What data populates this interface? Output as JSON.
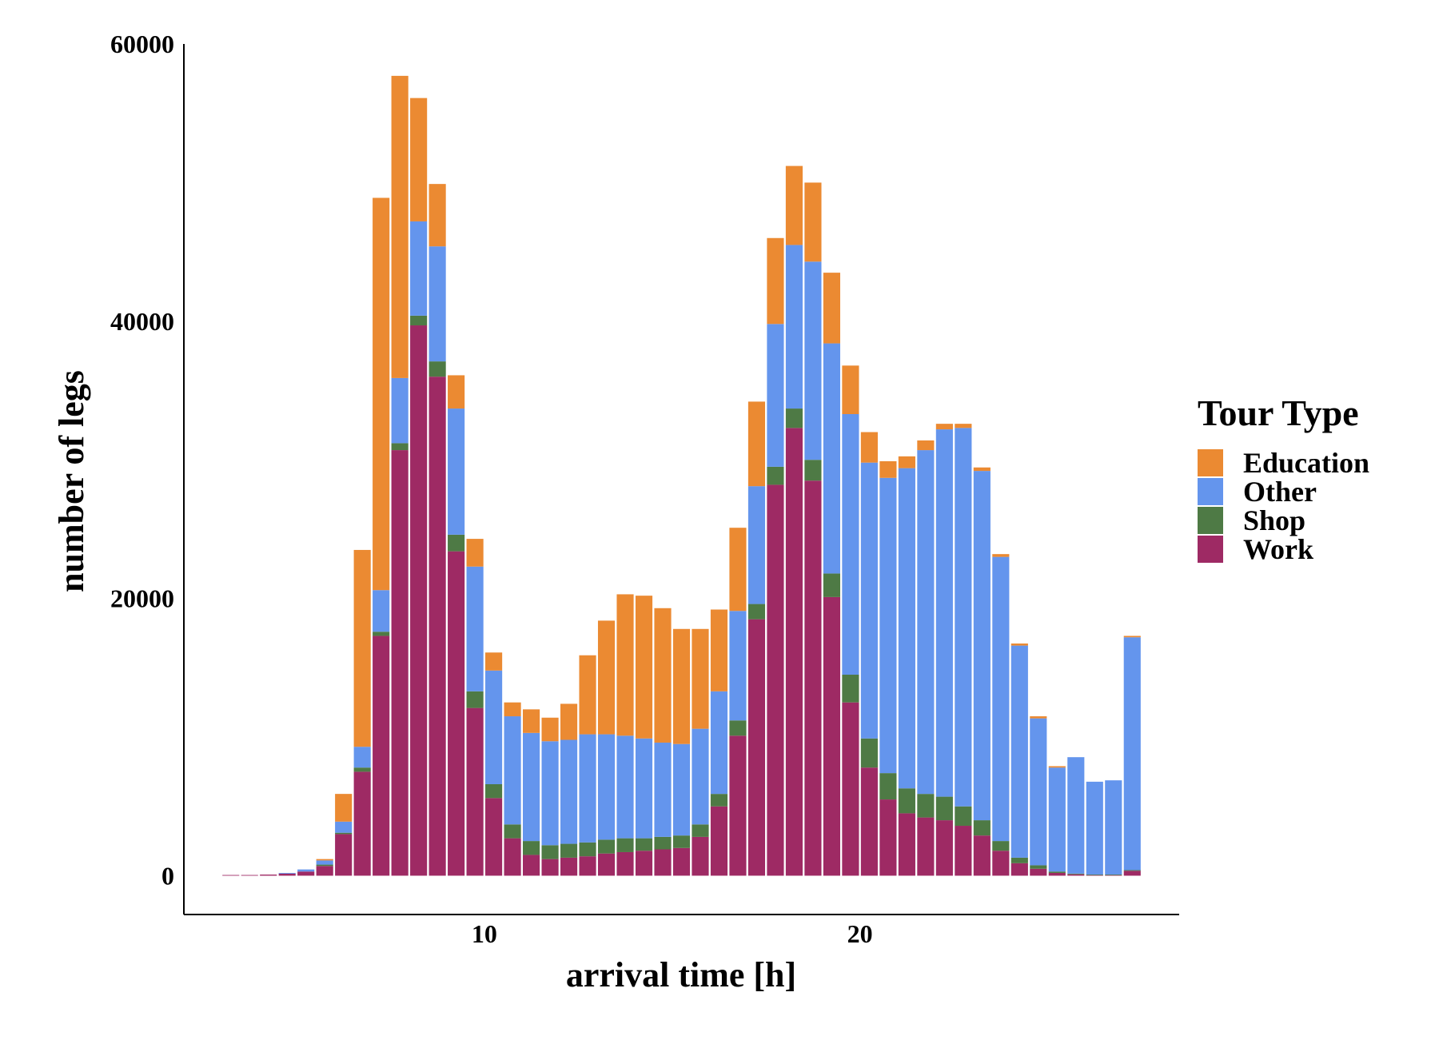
{
  "chart_data": {
    "type": "bar",
    "stacked": true,
    "xlabel": "arrival time [h]",
    "ylabel": "number of legs",
    "xlim": [
      2,
      28.5
    ],
    "ylim": [
      -2800,
      60000
    ],
    "x_ticks": [
      10,
      20
    ],
    "y_ticks": [
      0,
      20000,
      40000,
      60000
    ],
    "grid": false,
    "legend_placement": "right",
    "legend_title": "Tour Type",
    "x": [
      3.25,
      3.75,
      4.25,
      4.75,
      5.25,
      5.75,
      6.25,
      6.75,
      7.25,
      7.75,
      8.25,
      8.75,
      9.25,
      9.75,
      10.25,
      10.75,
      11.25,
      11.75,
      12.25,
      12.75,
      13.25,
      13.75,
      14.25,
      14.75,
      15.25,
      15.75,
      16.25,
      16.75,
      17.25,
      17.75,
      18.25,
      18.75,
      19.25,
      19.75,
      20.25,
      20.75,
      21.25,
      21.75,
      22.25,
      22.75,
      23.25,
      23.75,
      24.25,
      24.75,
      25.25,
      25.75,
      26.25,
      26.75,
      27.25
    ],
    "series": [
      {
        "name": "Work",
        "color": "#9E2A64",
        "values": [
          50,
          50,
          80,
          150,
          300,
          700,
          3000,
          7500,
          17300,
          30700,
          39700,
          36000,
          23400,
          12100,
          5600,
          2700,
          1500,
          1200,
          1300,
          1400,
          1600,
          1700,
          1800,
          1900,
          2000,
          2800,
          5000,
          10100,
          18500,
          28200,
          32300,
          28500,
          20100,
          12500,
          7800,
          5500,
          4500,
          4200,
          4000,
          3600,
          2900,
          1800,
          900,
          500,
          200,
          100,
          50,
          50,
          350
        ]
      },
      {
        "name": "Shop",
        "color": "#4E7A45",
        "values": [
          0,
          0,
          0,
          0,
          0,
          100,
          100,
          300,
          300,
          500,
          700,
          1100,
          1200,
          1200,
          1000,
          1000,
          1000,
          1000,
          1000,
          1000,
          1000,
          1000,
          900,
          900,
          900,
          900,
          900,
          1100,
          1100,
          1300,
          1400,
          1500,
          1700,
          2000,
          2100,
          1900,
          1800,
          1700,
          1700,
          1400,
          1100,
          700,
          400,
          250,
          100,
          50,
          30,
          30,
          50
        ]
      },
      {
        "name": "Other",
        "color": "#6495ED",
        "values": [
          0,
          0,
          0,
          50,
          150,
          300,
          800,
          1500,
          3000,
          4700,
          6800,
          8300,
          9100,
          9000,
          8200,
          7800,
          7800,
          7500,
          7500,
          7800,
          7600,
          7400,
          7200,
          6800,
          6600,
          6900,
          7400,
          7900,
          8500,
          10300,
          11800,
          14300,
          16600,
          18800,
          19900,
          21300,
          23100,
          24800,
          26500,
          27300,
          25200,
          20500,
          15300,
          10600,
          7500,
          8400,
          6700,
          6800,
          16800
        ]
      },
      {
        "name": "Education",
        "color": "#EB8A32",
        "values": [
          0,
          0,
          0,
          0,
          0,
          100,
          2000,
          14200,
          28300,
          21800,
          8900,
          4500,
          2400,
          2000,
          1300,
          1000,
          1700,
          1700,
          2600,
          5700,
          8200,
          10200,
          10300,
          9700,
          8300,
          7200,
          5900,
          6000,
          6100,
          6200,
          5700,
          5700,
          5100,
          3500,
          2200,
          1200,
          850,
          700,
          400,
          300,
          250,
          200,
          150,
          150,
          100,
          0,
          0,
          0,
          100
        ]
      }
    ]
  }
}
